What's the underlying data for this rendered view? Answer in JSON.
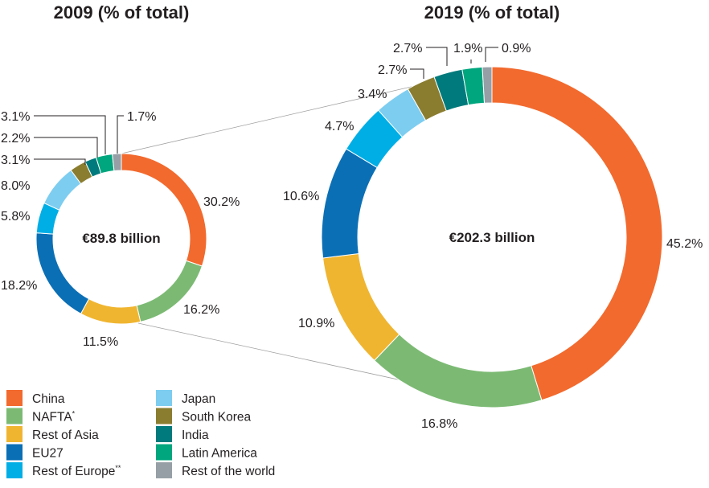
{
  "chart_data": [
    {
      "type": "donut",
      "title": "2009 (% of total)",
      "center_label": "€89.8 billion",
      "categories": [
        "China",
        "NAFTA",
        "Rest of Asia",
        "EU27",
        "Rest of Europe",
        "Japan",
        "South Korea",
        "India",
        "Latin America",
        "Rest of the world"
      ],
      "values": [
        30.2,
        16.2,
        11.5,
        18.2,
        5.8,
        8.0,
        3.1,
        2.2,
        3.1,
        1.7
      ],
      "labels": [
        "30.2%",
        "16.2%",
        "11.5%",
        "18.2%",
        "5.8%",
        "8.0%",
        "3.1%",
        "2.2%",
        "3.1%",
        "1.7%"
      ]
    },
    {
      "type": "donut",
      "title": "2019 (% of total)",
      "center_label": "€202.3 billion",
      "categories": [
        "China",
        "NAFTA",
        "Rest of Asia",
        "EU27",
        "Rest of Europe",
        "Japan",
        "South Korea",
        "India",
        "Latin America",
        "Rest of the world"
      ],
      "values": [
        45.2,
        16.8,
        10.9,
        10.6,
        4.7,
        3.4,
        2.7,
        2.7,
        1.9,
        0.9
      ],
      "labels": [
        "45.2%",
        "16.8%",
        "10.9%",
        "10.6%",
        "4.7%",
        "3.4%",
        "2.7%",
        "2.7%",
        "1.9%",
        "0.9%"
      ]
    }
  ],
  "legend": [
    {
      "label": "China",
      "sup": "",
      "color": "#f26a2e"
    },
    {
      "label": "NAFTA",
      "sup": "*",
      "color": "#7cba74"
    },
    {
      "label": "Rest of Asia",
      "sup": "",
      "color": "#f0b530"
    },
    {
      "label": "EU27",
      "sup": "",
      "color": "#0b6fb5"
    },
    {
      "label": "Rest of Europe",
      "sup": "**",
      "color": "#00aee6"
    },
    {
      "label": "Japan",
      "sup": "",
      "color": "#7dcdf0"
    },
    {
      "label": "South Korea",
      "sup": "",
      "color": "#8b7d30"
    },
    {
      "label": "India",
      "sup": "",
      "color": "#007a7c"
    },
    {
      "label": "Latin America",
      "sup": "",
      "color": "#00a67e"
    },
    {
      "label": "Rest of the world",
      "sup": "",
      "color": "#969fa6"
    }
  ]
}
